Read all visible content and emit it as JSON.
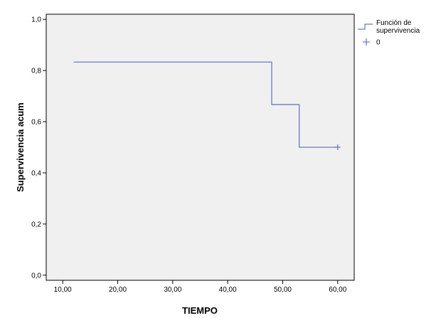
{
  "chart_data": {
    "type": "line",
    "chart_style": "step",
    "xlabel": "TIEMPO",
    "ylabel": "Supervivencia acum",
    "xlim": [
      7,
      63
    ],
    "ylim": [
      -0.02,
      1.02
    ],
    "x_ticks": [
      {
        "value": 10,
        "label": "10,00"
      },
      {
        "value": 20,
        "label": "20,00"
      },
      {
        "value": 30,
        "label": "30,00"
      },
      {
        "value": 40,
        "label": "40,00"
      },
      {
        "value": 50,
        "label": "50,00"
      },
      {
        "value": 60,
        "label": "60,00"
      }
    ],
    "y_ticks": [
      {
        "value": 0.0,
        "label": "0,0"
      },
      {
        "value": 0.2,
        "label": "0,2"
      },
      {
        "value": 0.4,
        "label": "0,4"
      },
      {
        "value": 0.6,
        "label": "0,6"
      },
      {
        "value": 0.8,
        "label": "0,8"
      },
      {
        "value": 1.0,
        "label": "1,0"
      }
    ],
    "grid": false,
    "legend_position": "top-right-outside",
    "plot_background": "#f0f0f0",
    "series": [
      {
        "name": "Función de supervivencia",
        "color": "#6a7bc4",
        "steps": [
          {
            "x": 12,
            "y": 0.833
          },
          {
            "x": 48,
            "y": 0.667
          },
          {
            "x": 53,
            "y": 0.5
          },
          {
            "x": 60,
            "y": 0.5
          }
        ]
      }
    ],
    "censored": {
      "name": "0",
      "color": "#6a7bc4",
      "points": [
        {
          "x": 60,
          "y": 0.5
        }
      ]
    },
    "legend": [
      {
        "label_lines": [
          "Función de",
          "supervivencia"
        ],
        "symbol": "step-line"
      },
      {
        "label_lines": [
          "0"
        ],
        "symbol": "plus"
      }
    ]
  }
}
